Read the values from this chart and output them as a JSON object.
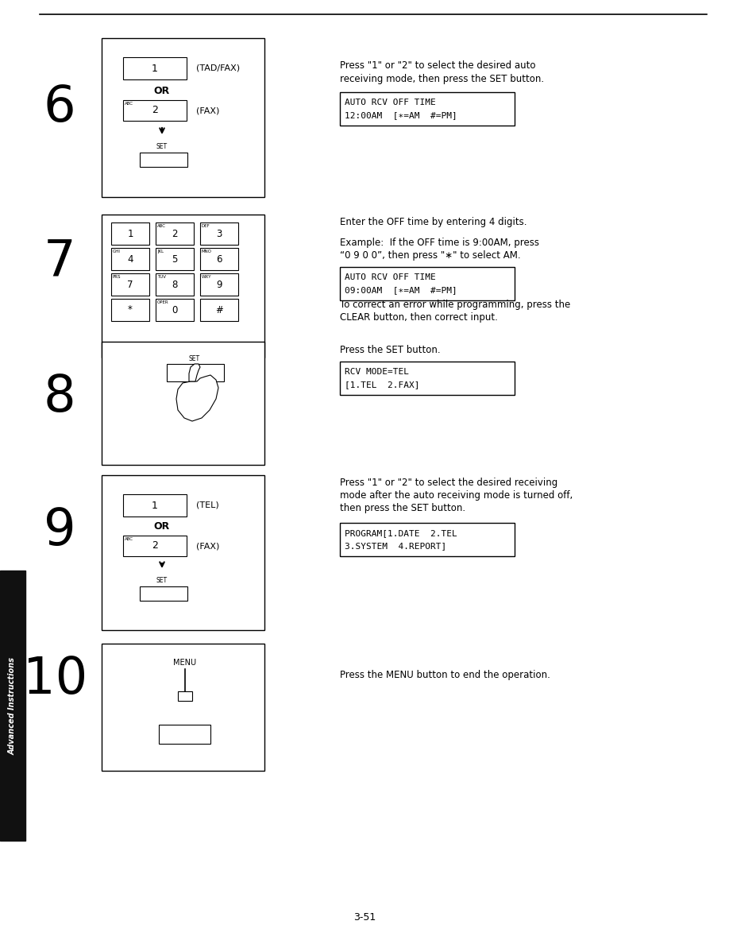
{
  "page_bg": "#ffffff",
  "sidebar_bg": "#111111",
  "sidebar_text": "Advanced Instructions",
  "sidebar_text_color": "#ffffff",
  "page_number": "3-51",
  "steps": [
    {
      "number": "6",
      "step6_desc1": "Press \"1\" or \"2\" to select the desired auto",
      "step6_desc2": "receiving mode, then press the SET button.",
      "step6_lcd": [
        "AUTO RCV OFF TIME",
        "12:00AM  [∗=AM  #=PM]"
      ]
    },
    {
      "number": "7",
      "step7_desc1": "Enter the OFF time by entering 4 digits.",
      "step7_desc2": "Example:  If the OFF time is 9:00AM, press",
      "step7_desc3": "“0 9 0 0”, then press \"∗\" to select AM.",
      "step7_lcd": [
        "AUTO RCV OFF TIME",
        "09:00AM  [∗=AM  #=PM]"
      ],
      "step7_extra1": "To correct an error while programming, press the",
      "step7_extra2": "CLEAR button, then correct input."
    },
    {
      "number": "8",
      "step8_desc": "Press the SET button.",
      "step8_lcd": [
        "RCV MODE=TEL",
        "[1.TEL  2.FAX]"
      ]
    },
    {
      "number": "9",
      "step9_desc1": "Press \"1\" or \"2\" to select the desired receiving",
      "step9_desc2": "mode after the auto receiving mode is turned off,",
      "step9_desc3": "then press the SET button.",
      "step9_lcd": [
        "PROGRAM[1.DATE  2.TEL",
        "3.SYSTEM  4.REPORT]"
      ]
    },
    {
      "number": "10",
      "step10_desc": "Press the MENU button to end the operation."
    }
  ]
}
